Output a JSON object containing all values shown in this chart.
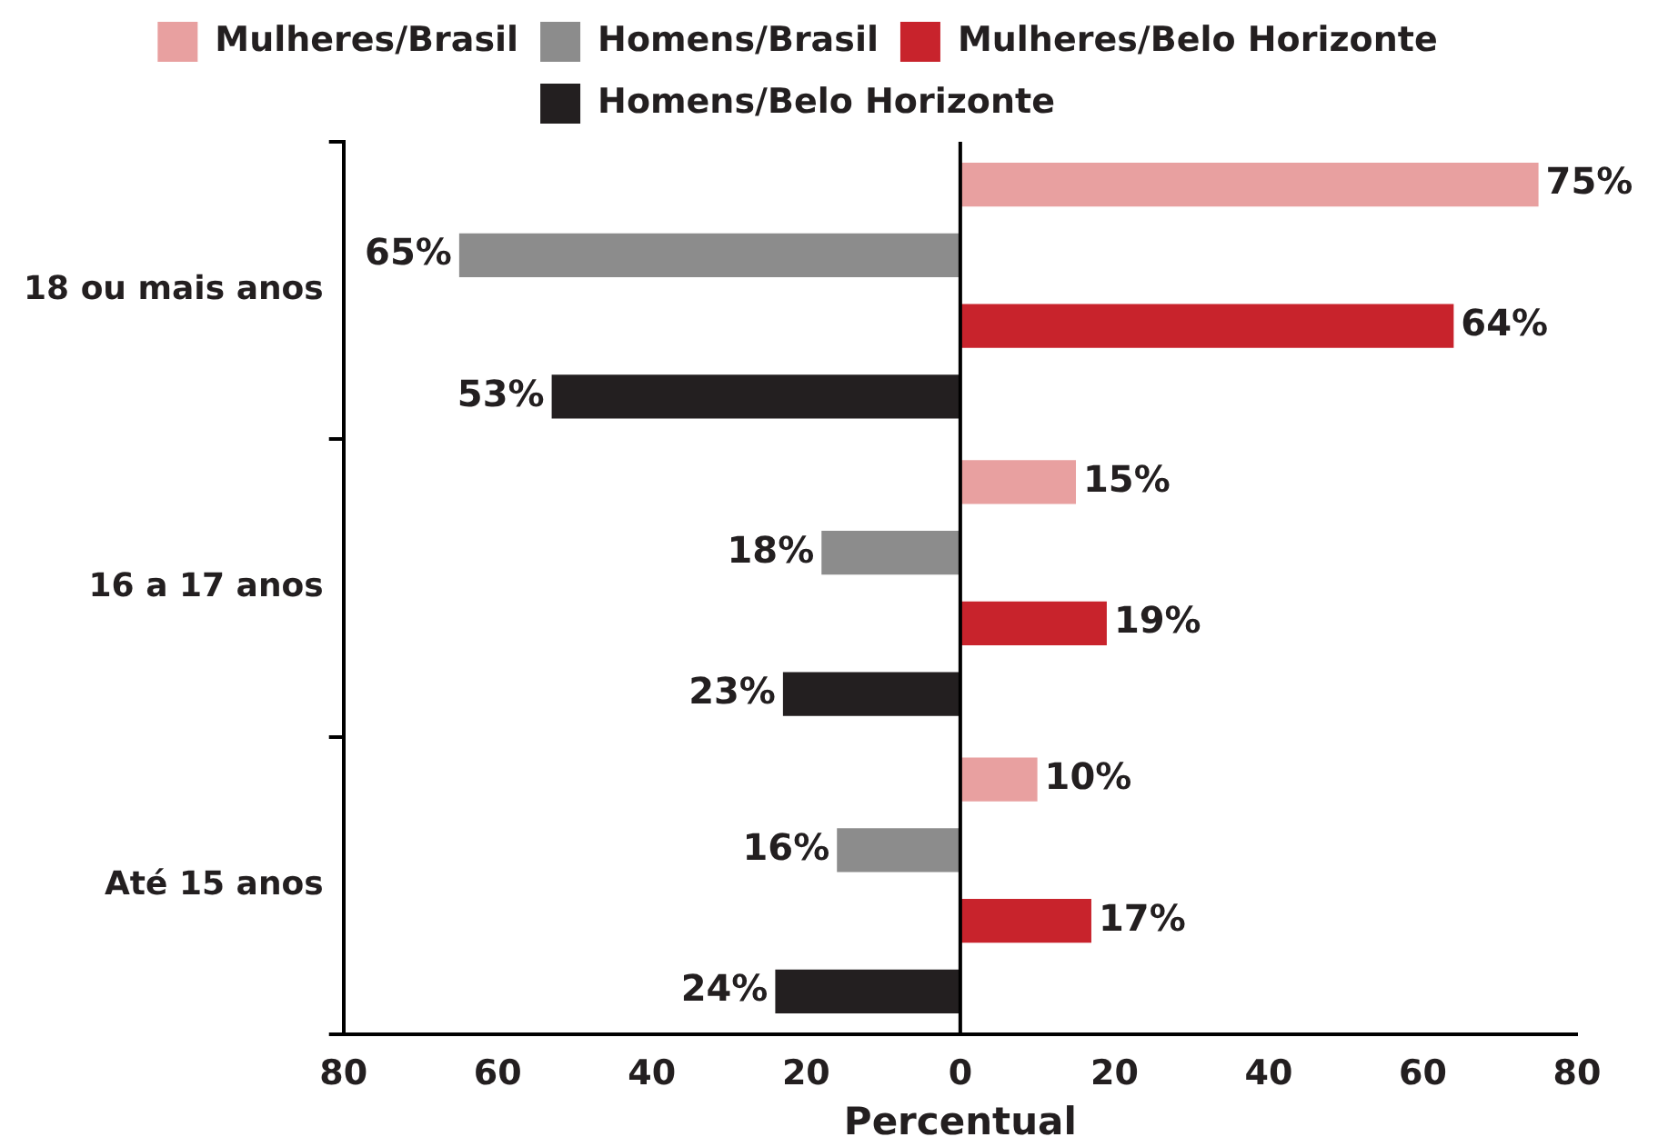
{
  "chart_data": {
    "type": "bar",
    "orientation": "horizontal",
    "xlabel": "Percentual",
    "categories": [
      "18 ou mais anos",
      "16 a 17 anos",
      "Até 15 anos"
    ],
    "series": [
      {
        "name": "Mulheres/Brasil",
        "color": "#e8a0a0",
        "values": [
          75,
          15,
          10
        ],
        "value_labels": [
          "75%",
          "15%",
          "10%"
        ]
      },
      {
        "name": "Homens/Brasil",
        "color": "#8c8c8c",
        "base": [
          -65,
          -18,
          -16
        ],
        "values": [
          65,
          18,
          16
        ],
        "value_labels": [
          "65%",
          "18%",
          "16%"
        ]
      },
      {
        "name": "Mulheres/Belo Horizonte",
        "color": "#c8232c",
        "values": [
          64,
          19,
          17
        ],
        "value_labels": [
          "64%",
          "19%",
          "17%"
        ]
      },
      {
        "name": "Homens/Belo Horizonte",
        "color": "#231f20",
        "base": [
          -53,
          -23,
          -24
        ],
        "values": [
          53,
          23,
          24
        ],
        "value_labels": [
          "53%",
          "23%",
          "24%"
        ]
      }
    ],
    "xlim": [
      -80,
      80
    ],
    "xticks": [
      {
        "value": -80,
        "label": "80"
      },
      {
        "value": -60,
        "label": "60"
      },
      {
        "value": -40,
        "label": "40"
      },
      {
        "value": -20,
        "label": "20"
      },
      0,
      20,
      40,
      60,
      80
    ],
    "ref_lines": [
      {
        "axis": "x",
        "value": 0,
        "color": "#000000"
      }
    ],
    "grid": false,
    "legend": "top"
  }
}
